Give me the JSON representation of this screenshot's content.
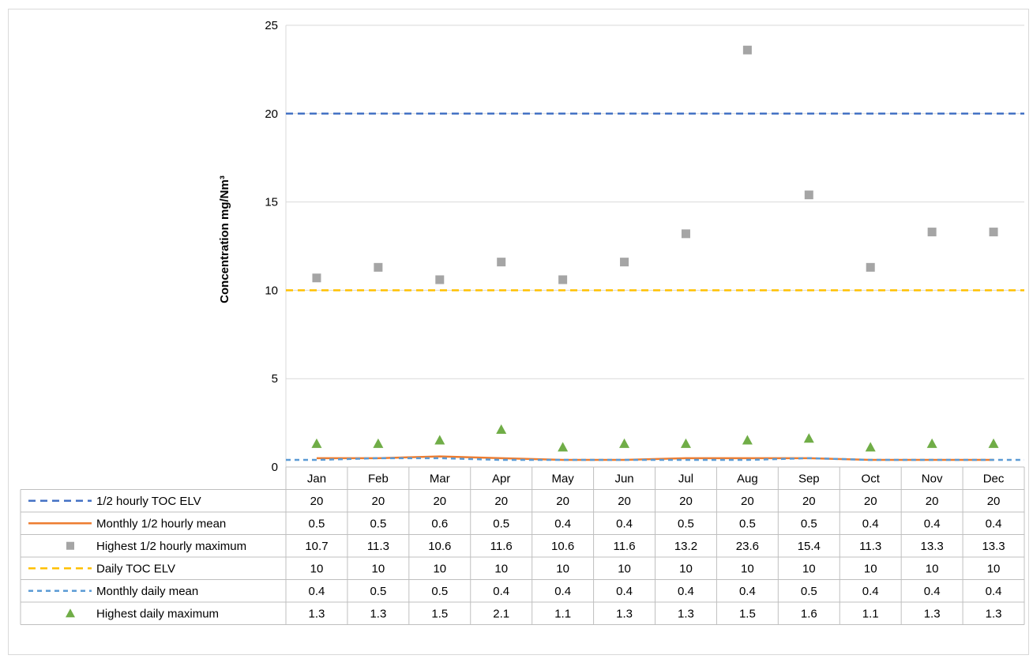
{
  "chart_data": {
    "type": "line",
    "title": "",
    "xlabel": "",
    "ylabel": "Concentration mg/Nm³",
    "ylim": [
      0,
      25
    ],
    "yticks": [
      0,
      5,
      10,
      15,
      20,
      25
    ],
    "categories": [
      "Jan",
      "Feb",
      "Mar",
      "Apr",
      "May",
      "Jun",
      "Jul",
      "Aug",
      "Sep",
      "Oct",
      "Nov",
      "Dec"
    ],
    "grid": true,
    "legend_placement": "data-table",
    "series": [
      {
        "name": "1/2 hourly TOC ELV",
        "kind": "line",
        "dash": "long",
        "color": "#4472c4",
        "values": [
          20,
          20,
          20,
          20,
          20,
          20,
          20,
          20,
          20,
          20,
          20,
          20
        ],
        "labels": [
          "20",
          "20",
          "20",
          "20",
          "20",
          "20",
          "20",
          "20",
          "20",
          "20",
          "20",
          "20"
        ]
      },
      {
        "name": "Monthly 1/2 hourly mean",
        "kind": "line",
        "dash": "solid",
        "color": "#ed7d31",
        "values": [
          0.5,
          0.5,
          0.6,
          0.5,
          0.4,
          0.4,
          0.5,
          0.5,
          0.5,
          0.4,
          0.4,
          0.4
        ],
        "labels": [
          "0.5",
          "0.5",
          "0.6",
          "0.5",
          "0.4",
          "0.4",
          "0.5",
          "0.5",
          "0.5",
          "0.4",
          "0.4",
          "0.4"
        ]
      },
      {
        "name": "Highest 1/2 hourly maximum",
        "kind": "marker",
        "marker": "square",
        "color": "#a5a5a5",
        "values": [
          10.7,
          11.3,
          10.6,
          11.6,
          10.6,
          11.6,
          13.2,
          23.6,
          15.4,
          11.3,
          13.3,
          13.3
        ],
        "labels": [
          "10.7",
          "11.3",
          "10.6",
          "11.6",
          "10.6",
          "11.6",
          "13.2",
          "23.6",
          "15.4",
          "11.3",
          "13.3",
          "13.3"
        ]
      },
      {
        "name": "Daily TOC ELV",
        "kind": "line",
        "dash": "long",
        "color": "#ffc000",
        "values": [
          10,
          10,
          10,
          10,
          10,
          10,
          10,
          10,
          10,
          10,
          10,
          10
        ],
        "labels": [
          "10",
          "10",
          "10",
          "10",
          "10",
          "10",
          "10",
          "10",
          "10",
          "10",
          "10",
          "10"
        ]
      },
      {
        "name": "Monthly daily mean",
        "kind": "line",
        "dash": "short",
        "color": "#5b9bd5",
        "values": [
          0.4,
          0.5,
          0.5,
          0.4,
          0.4,
          0.4,
          0.4,
          0.4,
          0.5,
          0.4,
          0.4,
          0.4
        ],
        "labels": [
          "0.4",
          "0.5",
          "0.5",
          "0.4",
          "0.4",
          "0.4",
          "0.4",
          "0.4",
          "0.5",
          "0.4",
          "0.4",
          "0.4"
        ]
      },
      {
        "name": "Highest daily maximum",
        "kind": "marker",
        "marker": "triangle",
        "color": "#70ad47",
        "values": [
          1.3,
          1.3,
          1.5,
          2.1,
          1.1,
          1.3,
          1.3,
          1.5,
          1.6,
          1.1,
          1.3,
          1.3
        ],
        "labels": [
          "1.3",
          "1.3",
          "1.5",
          "2.1",
          "1.1",
          "1.3",
          "1.3",
          "1.5",
          "1.6",
          "1.1",
          "1.3",
          "1.3"
        ]
      }
    ]
  }
}
